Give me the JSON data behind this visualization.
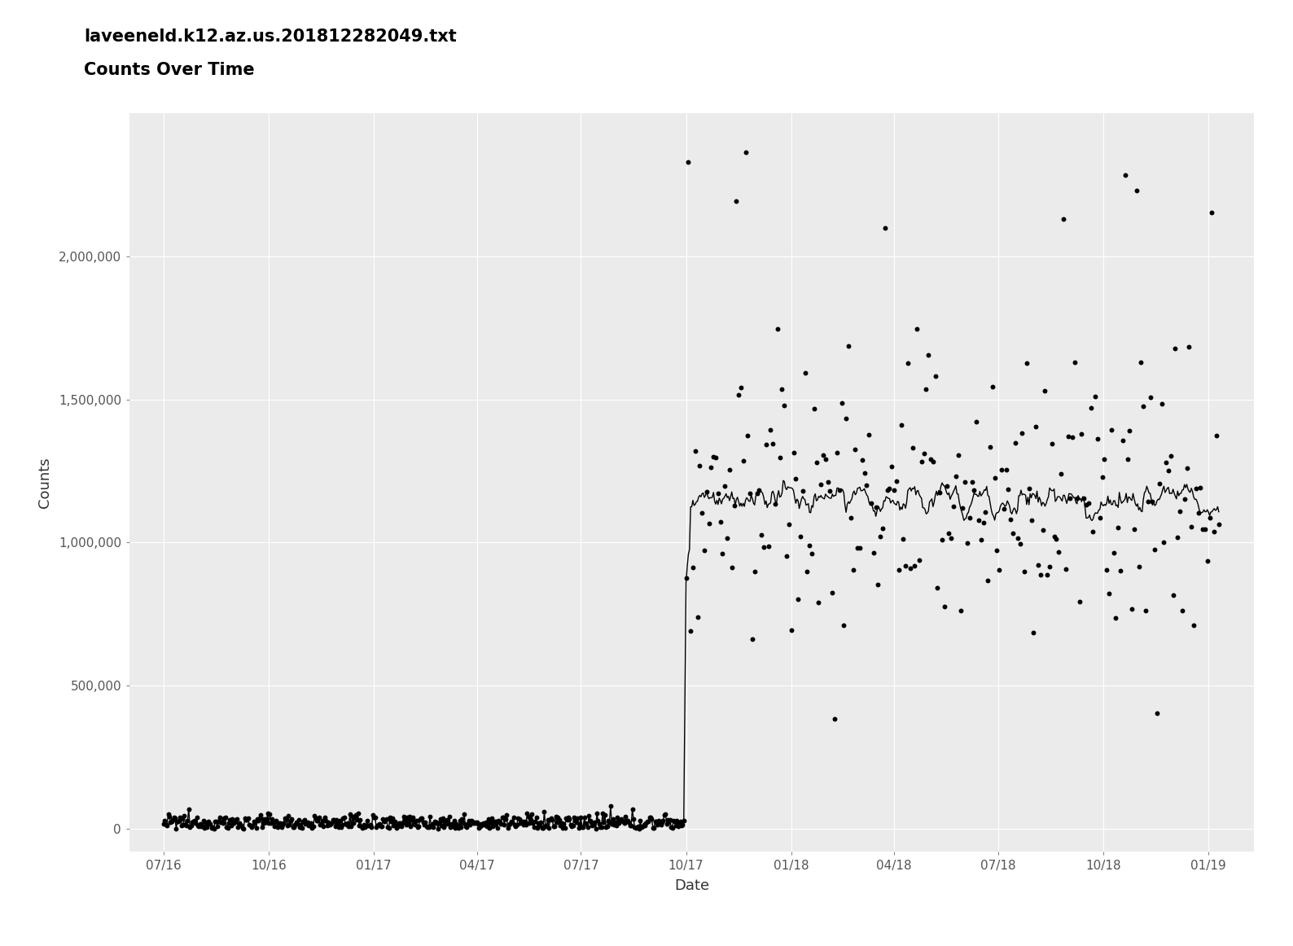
{
  "title_line1": "laveeneld.k12.az.us.201812282049.txt",
  "title_line2": "Counts Over Time",
  "xlabel": "Date",
  "ylabel": "Counts",
  "bg_color": "#EBEBEB",
  "fig_bg_color": "#FFFFFF",
  "grid_color": "#FFFFFF",
  "point_color": "#000000",
  "line_color": "#000000",
  "point_size": 18,
  "line_width": 1.0,
  "ylim_min": -80000,
  "ylim_max": 2500000,
  "yticks": [
    0,
    500000,
    1000000,
    1500000,
    2000000
  ],
  "ytick_labels": [
    "0",
    "500,000",
    "1,000,000",
    "1,500,000",
    "2,000,000"
  ],
  "xtick_labels": [
    "07/16",
    "10/16",
    "01/17",
    "04/17",
    "07/17",
    "10/17",
    "01/18",
    "04/18",
    "07/18",
    "10/18",
    "01/19"
  ],
  "title_fontsize": 15,
  "axis_label_fontsize": 13,
  "tick_fontsize": 11
}
